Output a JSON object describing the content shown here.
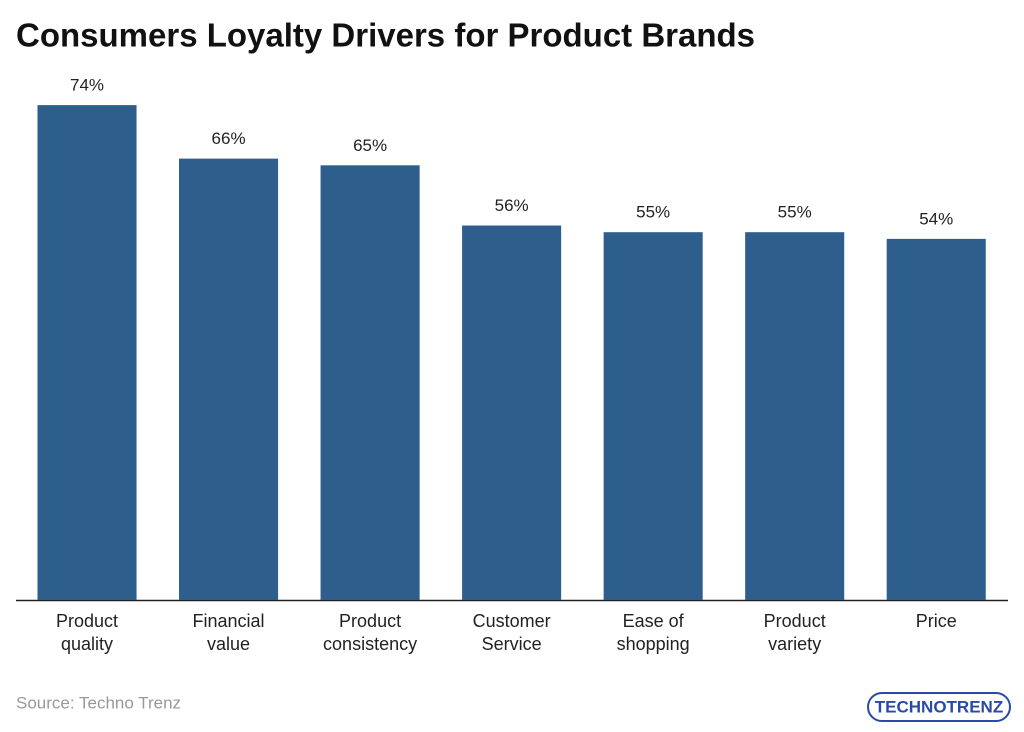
{
  "chart_data": {
    "type": "bar",
    "title": "Consumers Loyalty Drivers for Product Brands",
    "categories": [
      "Product quality",
      "Financial value",
      "Product consistency",
      "Customer Service",
      "Ease of shopping",
      "Product variety",
      "Price"
    ],
    "values": [
      74,
      66,
      65,
      56,
      55,
      55,
      54
    ],
    "value_labels": [
      "74%",
      "66%",
      "65%",
      "56%",
      "55%",
      "55%",
      "54%"
    ],
    "color": "#2e5f8c",
    "ylim": [
      0,
      80
    ]
  },
  "footer": {
    "source": "Source: Techno Trenz",
    "logo": "TECHNOTRENZ"
  }
}
